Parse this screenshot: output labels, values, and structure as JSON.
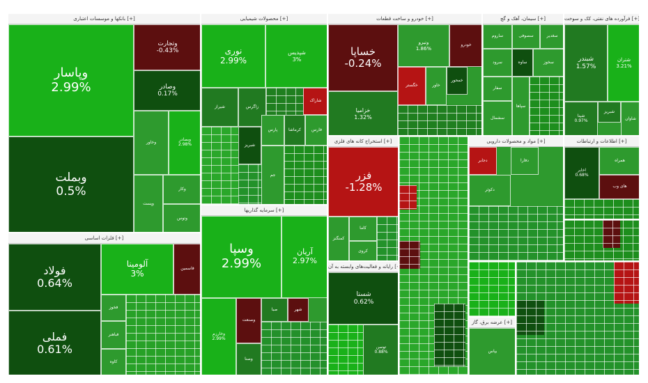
{
  "chart_data": {
    "type": "treemap",
    "colors": {
      "strong_up": "#19b119",
      "up": "#2e9a2e",
      "mild_up": "#217a21",
      "flat": "#0f4f0f",
      "down": "#5c0f0f",
      "strong_down": "#b51414"
    },
    "sectors": [
      {
        "name": "بانکها و موسسات اعتباری [+]",
        "tiles": [
          {
            "symbol": "وپاسار",
            "change": "2.99%",
            "pct": 2.99
          },
          {
            "symbol": "وبملت",
            "change": "0.5%",
            "pct": 0.5
          },
          {
            "symbol": "وتجارت",
            "change": "-0.43%",
            "pct": -0.43
          },
          {
            "symbol": "وصادر",
            "change": "0.17%",
            "pct": 0.17
          },
          {
            "symbol": "وخاور",
            "change": "",
            "pct": 2.5
          },
          {
            "symbol": "وبصادر",
            "change": "2.98%",
            "pct": 2.98
          },
          {
            "symbol": "وپست",
            "change": "",
            "pct": 2.0
          },
          {
            "symbol": "وکار",
            "change": "",
            "pct": 2.6
          },
          {
            "symbol": "وتوس",
            "change": "",
            "pct": 2.2
          }
        ]
      },
      {
        "name": "فلزات اساسی [+]",
        "tiles": [
          {
            "symbol": "فولاد",
            "change": "0.64%",
            "pct": 0.64
          },
          {
            "symbol": "فملی",
            "change": "0.61%",
            "pct": 0.61
          },
          {
            "symbol": "فاسمین",
            "change": "",
            "pct": -0.5
          },
          {
            "symbol": "آلومینا",
            "change": "3%",
            "pct": 3.0
          },
          {
            "symbol": "فخوز",
            "change": "",
            "pct": 2.4
          },
          {
            "symbol": "فباهنر",
            "change": "",
            "pct": 2.2
          },
          {
            "symbol": "کاوه",
            "change": "",
            "pct": 2.1
          }
        ]
      },
      {
        "name": "محصولات شیمیایی [+]",
        "tiles": [
          {
            "symbol": "نوری",
            "change": "2.99%",
            "pct": 2.99
          },
          {
            "symbol": "شپدیس",
            "change": "3%",
            "pct": 3.0
          },
          {
            "symbol": "زاگرس",
            "change": "",
            "pct": 1.0
          },
          {
            "symbol": "شبریز",
            "change": "",
            "pct": 0.6
          },
          {
            "symbol": "پارس",
            "change": "",
            "pct": 2.0
          },
          {
            "symbol": "کرماشا",
            "change": "",
            "pct": 1.4
          },
          {
            "symbol": "شاراک",
            "change": "",
            "pct": -1.3
          },
          {
            "symbol": "فارس",
            "change": "",
            "pct": 2.8
          },
          {
            "symbol": "شیراز",
            "change": "",
            "pct": 1.2
          },
          {
            "symbol": "جم",
            "change": "",
            "pct": 2.3
          }
        ]
      },
      {
        "name": "سرمایه گذاریها [+]",
        "tiles": [
          {
            "symbol": "وسپا",
            "change": "2.99%",
            "pct": 2.99
          },
          {
            "symbol": "آریان",
            "change": "2.97%",
            "pct": 2.97
          },
          {
            "symbol": "وخارزم",
            "change": "2.99%",
            "pct": 2.99
          },
          {
            "symbol": "وصنا",
            "change": "",
            "pct": 1.5
          },
          {
            "symbol": "صبا",
            "change": "",
            "pct": 0.8
          },
          {
            "symbol": "شهر",
            "change": "",
            "pct": -0.4
          },
          {
            "symbol": "وصنعت",
            "change": "",
            "pct": -0.6
          }
        ]
      },
      {
        "name": "خودرو و ساخت قطعات [+]",
        "tiles": [
          {
            "symbol": "خساپا",
            "change": "-0.24%",
            "pct": -0.24
          },
          {
            "symbol": "خزامیا",
            "change": "1.32%",
            "pct": 1.32
          },
          {
            "symbol": "ونیرو",
            "change": "1.86%",
            "pct": 1.86
          },
          {
            "symbol": "خودرو",
            "change": "",
            "pct": -0.3
          },
          {
            "symbol": "خگستر",
            "change": "",
            "pct": -1.2
          },
          {
            "symbol": "خاور",
            "change": "",
            "pct": 2.2
          },
          {
            "symbol": "خمحور",
            "change": "",
            "pct": 0.5
          }
        ]
      },
      {
        "name": "سیمان، آهک و گچ [+]",
        "tiles": [
          {
            "symbol": "ساروم",
            "change": "",
            "pct": 2.3
          },
          {
            "symbol": "سصوفی",
            "change": "",
            "pct": 2.5
          },
          {
            "symbol": "سرود",
            "change": "",
            "pct": 2.2
          },
          {
            "symbol": "سغدیر",
            "change": "",
            "pct": 2.0
          },
          {
            "symbol": "ساوه",
            "change": "",
            "pct": 0.7
          },
          {
            "symbol": "سخوز",
            "change": "",
            "pct": 2.4
          },
          {
            "symbol": "سفار",
            "change": "",
            "pct": 2.1
          },
          {
            "symbol": "سشمال",
            "change": "",
            "pct": 1.8
          },
          {
            "symbol": "سپاها",
            "change": "",
            "pct": 2.6
          }
        ]
      },
      {
        "name": "فرآورده های نفتی، کک و سوخت [+]",
        "tiles": [
          {
            "symbol": "شبندر",
            "change": "1.57%",
            "pct": 1.57
          },
          {
            "symbol": "شتران",
            "change": "3.21%",
            "pct": 3.21
          },
          {
            "symbol": "شپنا",
            "change": "0.97%",
            "pct": 0.97
          },
          {
            "symbol": "شبریز",
            "change": "",
            "pct": 1.1
          },
          {
            "symbol": "شاوان",
            "change": "",
            "pct": 2.0
          }
        ]
      },
      {
        "name": "استخراج کانه های فلزی [+]",
        "tiles": [
          {
            "symbol": "فزر",
            "change": "-1.28%",
            "pct": -1.28
          },
          {
            "symbol": "کاما",
            "change": "",
            "pct": 2.2
          },
          {
            "symbol": "کروی",
            "change": "",
            "pct": 2.5
          },
          {
            "symbol": "کمنگنز",
            "change": "",
            "pct": 1.9
          }
        ]
      },
      {
        "name": "مواد و محصولات دارویی [+]",
        "tiles": [
          {
            "symbol": "دکوثر",
            "change": "",
            "pct": 2.3
          },
          {
            "symbol": "دفارا",
            "change": "",
            "pct": 2.6
          },
          {
            "symbol": "دجابر",
            "change": "",
            "pct": -1.2
          }
        ]
      },
      {
        "name": "رایانه و فعالیت‌های وابسته به آن [+]",
        "tiles": [
          {
            "symbol": "شستا",
            "change": "0.62%",
            "pct": 0.62
          },
          {
            "symbol": "توسن",
            "change": "0.88%",
            "pct": 0.88
          }
        ]
      },
      {
        "name": "اطلاعات و ارتباطات [+]",
        "tiles": [
          {
            "symbol": "اخابر",
            "change": "0.68%",
            "pct": 0.68
          },
          {
            "symbol": "همراه",
            "change": "",
            "pct": 2.1
          },
          {
            "symbol": "های وب",
            "change": "",
            "pct": -0.8
          }
        ]
      },
      {
        "name": "عرضه برق، گاز [+]",
        "tiles": [
          {
            "symbol": "بپاس",
            "change": "",
            "pct": 2.2
          }
        ]
      }
    ]
  }
}
